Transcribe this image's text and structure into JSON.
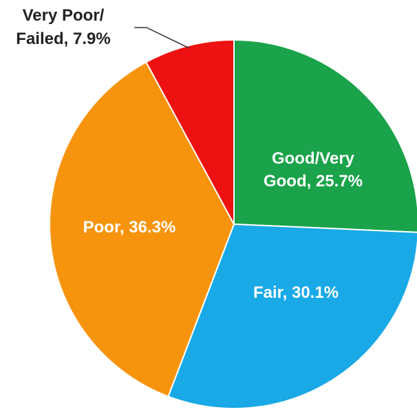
{
  "chart_data": {
    "type": "pie",
    "title": "",
    "start_angle_deg": 90,
    "direction": "clockwise",
    "slices": [
      {
        "label": "Good/Very Good",
        "value": 25.7,
        "display": [
          "Good/Very",
          "Good, 25.7%"
        ],
        "color": "#1aa34a",
        "label_color": "#ffffff",
        "label_position": "inside"
      },
      {
        "label": "Fair",
        "value": 30.1,
        "display": [
          "Fair, 30.1%"
        ],
        "color": "#18a9e6",
        "label_color": "#ffffff",
        "label_position": "inside"
      },
      {
        "label": "Poor",
        "value": 36.3,
        "display": [
          "Poor, 36.3%"
        ],
        "color": "#f7940d",
        "label_color": "#ffffff",
        "label_position": "inside"
      },
      {
        "label": "Very Poor/Failed",
        "value": 7.9,
        "display": [
          "Very Poor/",
          "Failed, 7.9%"
        ],
        "color": "#ee1111",
        "label_color": "#222222",
        "label_position": "outside-top-left"
      }
    ]
  }
}
